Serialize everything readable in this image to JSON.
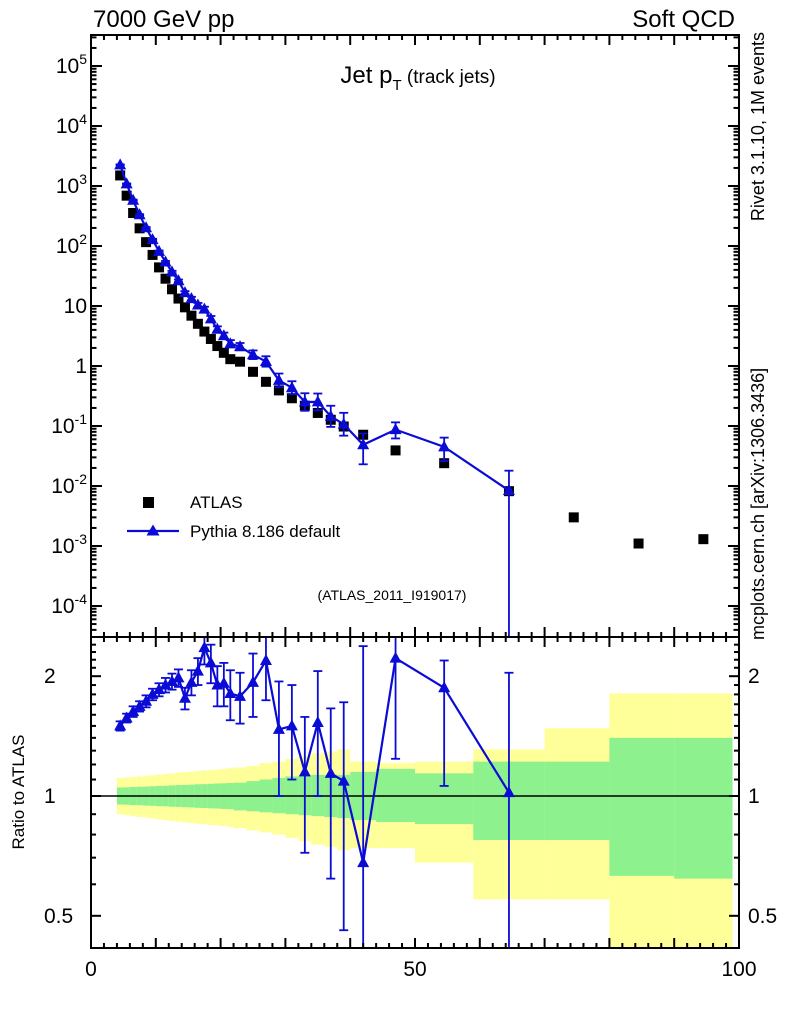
{
  "header": {
    "left": "7000 GeV pp",
    "right": "Soft QCD"
  },
  "credits": {
    "right_top": "Rivet 3.1.10,  1M events",
    "right_bottom": "mcplots.cern.ch [arXiv:1306.3436]"
  },
  "watermark": "(ATLAS_2011_I919017)",
  "colors": {
    "mc_blue": "#0b0bd6",
    "data_black": "#000000",
    "band_outer": "#ffff99",
    "band_inner": "#8df18d",
    "credit_gray": "#8a8a8a",
    "watermark_gray": "#b9b9b9"
  },
  "chart_data": {
    "type": "line",
    "title_parts": {
      "pre": "Jet p",
      "sub": "T",
      "post": " (track jets)"
    },
    "x_axis": {
      "min": 0,
      "max": 100,
      "minor_step": 2,
      "major_step": 10,
      "labeled_ticks": [
        0,
        50,
        100
      ]
    },
    "y_main": {
      "scale": "log",
      "min_exp": -4,
      "max_exp": 5
    },
    "y_ratio": {
      "scale": "log",
      "majors": [
        2,
        1,
        0.5
      ],
      "label": "Ratio to ATLAS",
      "minors": [
        0.6,
        0.7,
        0.8,
        0.9,
        1.1,
        1.2,
        1.3,
        1.4,
        1.5,
        1.6,
        1.7,
        1.8,
        1.9,
        2.1,
        2.2,
        2.3,
        2.4
      ]
    },
    "series": [
      {
        "name": "ATLAS",
        "marker": "square",
        "color": "#000000",
        "points": [
          [
            4.5,
            1500
          ],
          [
            5.5,
            690
          ],
          [
            6.5,
            355
          ],
          [
            7.5,
            197
          ],
          [
            8.5,
            116
          ],
          [
            9.5,
            71
          ],
          [
            10.5,
            44
          ],
          [
            11.5,
            28.5
          ],
          [
            12.5,
            19.0
          ],
          [
            13.5,
            13.3
          ],
          [
            14.5,
            9.5
          ],
          [
            15.5,
            6.9
          ],
          [
            16.5,
            5.05
          ],
          [
            17.5,
            3.75
          ],
          [
            18.5,
            2.82
          ],
          [
            19.5,
            2.15
          ],
          [
            20.5,
            1.66
          ],
          [
            21.5,
            1.3
          ],
          [
            23,
            1.18
          ],
          [
            25,
            0.8
          ],
          [
            27,
            0.545
          ],
          [
            29,
            0.392
          ],
          [
            31,
            0.29
          ],
          [
            33,
            0.218
          ],
          [
            35,
            0.165
          ],
          [
            37,
            0.127
          ],
          [
            39,
            0.098
          ],
          [
            42,
            0.0715
          ],
          [
            47,
            0.0392
          ],
          [
            54.5,
            0.024
          ],
          [
            64.5,
            0.0082
          ],
          [
            74.5,
            0.003
          ],
          [
            84.5,
            0.0011
          ],
          [
            94.5,
            0.0013
          ]
        ]
      },
      {
        "name": "Pythia 8.186 default",
        "marker": "triangle",
        "color": "#0b0bd6",
        "line": true,
        "points": [
          [
            4.5,
            2250
          ],
          [
            5.5,
            1083
          ],
          [
            6.5,
            579
          ],
          [
            7.5,
            331
          ],
          [
            8.5,
            201
          ],
          [
            9.5,
            128
          ],
          [
            10.5,
            81.4
          ],
          [
            11.5,
            54.2
          ],
          [
            12.5,
            36.9
          ],
          [
            13.5,
            26.3
          ],
          [
            14.5,
            16.7
          ],
          [
            15.5,
            13.3
          ],
          [
            16.5,
            10.4
          ],
          [
            17.5,
            8.85
          ],
          [
            18.5,
            6.09
          ],
          [
            19.5,
            4.09
          ],
          [
            20.5,
            3.19
          ],
          [
            21.5,
            2.35
          ],
          [
            23,
            2.1
          ],
          [
            25,
            1.54
          ],
          [
            27,
            1.19
          ],
          [
            29,
            0.576
          ],
          [
            31,
            0.435
          ],
          [
            33,
            0.251
          ],
          [
            35,
            0.252
          ],
          [
            37,
            0.145
          ],
          [
            39,
            0.107
          ],
          [
            42,
            0.0486
          ],
          [
            47,
            0.087
          ],
          [
            54.5,
            0.0449
          ],
          [
            64.5,
            0.0084
          ]
        ],
        "err": [
          0.02,
          0.02,
          0.025,
          0.025,
          0.03,
          0.03,
          0.035,
          0.04,
          0.045,
          0.05,
          0.06,
          0.07,
          0.08,
          0.1,
          0.12,
          0.12,
          0.13,
          0.15,
          0.15,
          0.18,
          0.22,
          0.3,
          0.28,
          0.4,
          0.38,
          0.5,
          0.55,
          [
            0.023,
            0.075
          ],
          [
            0.062,
            0.115
          ],
          [
            0.026,
            0.064
          ],
          [
            3e-05,
            0.018
          ]
        ]
      }
    ],
    "ratio_series": {
      "points": [
        [
          4.5,
          1.5
        ],
        [
          5.5,
          1.57
        ],
        [
          6.5,
          1.63
        ],
        [
          7.5,
          1.68
        ],
        [
          8.5,
          1.73
        ],
        [
          9.5,
          1.8
        ],
        [
          10.5,
          1.85
        ],
        [
          11.5,
          1.9
        ],
        [
          12.5,
          1.94
        ],
        [
          13.5,
          1.98
        ],
        [
          14.5,
          1.76
        ],
        [
          15.5,
          1.93
        ],
        [
          16.5,
          2.06
        ],
        [
          17.5,
          2.36
        ],
        [
          18.5,
          2.16
        ],
        [
          19.5,
          1.9
        ],
        [
          20.5,
          1.92
        ],
        [
          21.5,
          1.81
        ],
        [
          23,
          1.78
        ],
        [
          25,
          1.93
        ],
        [
          27,
          2.19
        ],
        [
          29,
          1.47
        ],
        [
          31,
          1.5
        ],
        [
          33,
          1.15
        ],
        [
          35,
          1.53
        ],
        [
          37,
          1.14
        ],
        [
          39,
          1.09
        ],
        [
          42,
          0.68
        ],
        [
          47,
          2.22
        ],
        [
          54.5,
          1.87
        ],
        [
          64.5,
          1.02
        ]
      ],
      "err": [
        [
          1.46,
          1.54
        ],
        [
          1.53,
          1.61
        ],
        [
          1.58,
          1.68
        ],
        [
          1.63,
          1.73
        ],
        [
          1.67,
          1.79
        ],
        [
          1.74,
          1.86
        ],
        [
          1.78,
          1.92
        ],
        [
          1.82,
          1.98
        ],
        [
          1.85,
          2.03
        ],
        [
          1.88,
          2.08
        ],
        [
          1.65,
          1.87
        ],
        [
          1.79,
          2.07
        ],
        [
          1.9,
          2.22
        ],
        [
          2.14,
          2.58
        ],
        [
          1.92,
          2.4
        ],
        [
          1.68,
          2.12
        ],
        [
          1.68,
          2.16
        ],
        [
          1.55,
          2.07
        ],
        [
          1.52,
          2.04
        ],
        [
          1.58,
          2.28
        ],
        [
          1.74,
          2.64
        ],
        [
          1.0,
          1.94
        ],
        [
          1.1,
          1.9
        ],
        [
          0.72,
          1.58
        ],
        [
          1.0,
          2.06
        ],
        [
          0.62,
          1.66
        ],
        [
          0.46,
          1.72
        ],
        [
          0.15,
          2.38
        ],
        [
          1.24,
          2.7
        ],
        [
          1.06,
          2.19
        ],
        [
          0.003,
          2.04
        ]
      ]
    },
    "bands": {
      "outer_color": "#ffff99",
      "inner_color": "#8df18d",
      "edges": [
        4,
        5,
        6,
        7,
        8,
        9,
        10,
        11,
        12,
        13,
        14,
        15,
        16,
        17,
        18,
        19,
        20,
        21,
        22,
        24,
        26,
        28,
        30,
        32,
        34,
        36,
        38,
        40,
        44,
        50,
        59,
        70,
        80,
        90,
        99
      ],
      "outer": [
        [
          0.9,
          1.11
        ],
        [
          0.895,
          1.113
        ],
        [
          0.89,
          1.116
        ],
        [
          0.886,
          1.12
        ],
        [
          0.882,
          1.124
        ],
        [
          0.878,
          1.128
        ],
        [
          0.874,
          1.132
        ],
        [
          0.87,
          1.136
        ],
        [
          0.866,
          1.14
        ],
        [
          0.862,
          1.144
        ],
        [
          0.858,
          1.148
        ],
        [
          0.855,
          1.152
        ],
        [
          0.852,
          1.156
        ],
        [
          0.849,
          1.16
        ],
        [
          0.846,
          1.163
        ],
        [
          0.843,
          1.166
        ],
        [
          0.84,
          1.17
        ],
        [
          0.836,
          1.174
        ],
        [
          0.83,
          1.18
        ],
        [
          0.82,
          1.19
        ],
        [
          0.81,
          1.21
        ],
        [
          0.8,
          1.22
        ],
        [
          0.785,
          1.24
        ],
        [
          0.77,
          1.26
        ],
        [
          0.755,
          1.28
        ],
        [
          0.745,
          1.295
        ],
        [
          0.73,
          1.31
        ],
        [
          0.74,
          1.22
        ],
        [
          0.74,
          1.21
        ],
        [
          0.68,
          1.22
        ],
        [
          0.55,
          1.31
        ],
        [
          0.55,
          1.48
        ],
        [
          0.36,
          1.81
        ],
        [
          0.36,
          1.81
        ]
      ],
      "inner": [
        [
          0.952,
          1.05
        ],
        [
          0.951,
          1.051
        ],
        [
          0.949,
          1.053
        ],
        [
          0.948,
          1.055
        ],
        [
          0.946,
          1.056
        ],
        [
          0.945,
          1.058
        ],
        [
          0.943,
          1.06
        ],
        [
          0.942,
          1.061
        ],
        [
          0.94,
          1.063
        ],
        [
          0.939,
          1.065
        ],
        [
          0.937,
          1.066
        ],
        [
          0.936,
          1.068
        ],
        [
          0.934,
          1.07
        ],
        [
          0.933,
          1.071
        ],
        [
          0.931,
          1.073
        ],
        [
          0.93,
          1.075
        ],
        [
          0.928,
          1.076
        ],
        [
          0.927,
          1.078
        ],
        [
          0.92,
          1.08
        ],
        [
          0.915,
          1.09
        ],
        [
          0.91,
          1.1
        ],
        [
          0.905,
          1.11
        ],
        [
          0.9,
          1.12
        ],
        [
          0.895,
          1.125
        ],
        [
          0.89,
          1.13
        ],
        [
          0.885,
          1.13
        ],
        [
          0.88,
          1.13
        ],
        [
          0.87,
          1.15
        ],
        [
          0.86,
          1.17
        ],
        [
          0.85,
          1.14
        ],
        [
          0.775,
          1.22
        ],
        [
          0.775,
          1.22
        ],
        [
          0.63,
          1.4
        ],
        [
          0.62,
          1.4
        ]
      ]
    }
  },
  "legend": {
    "items": [
      "ATLAS",
      "Pythia 8.186 default"
    ]
  }
}
